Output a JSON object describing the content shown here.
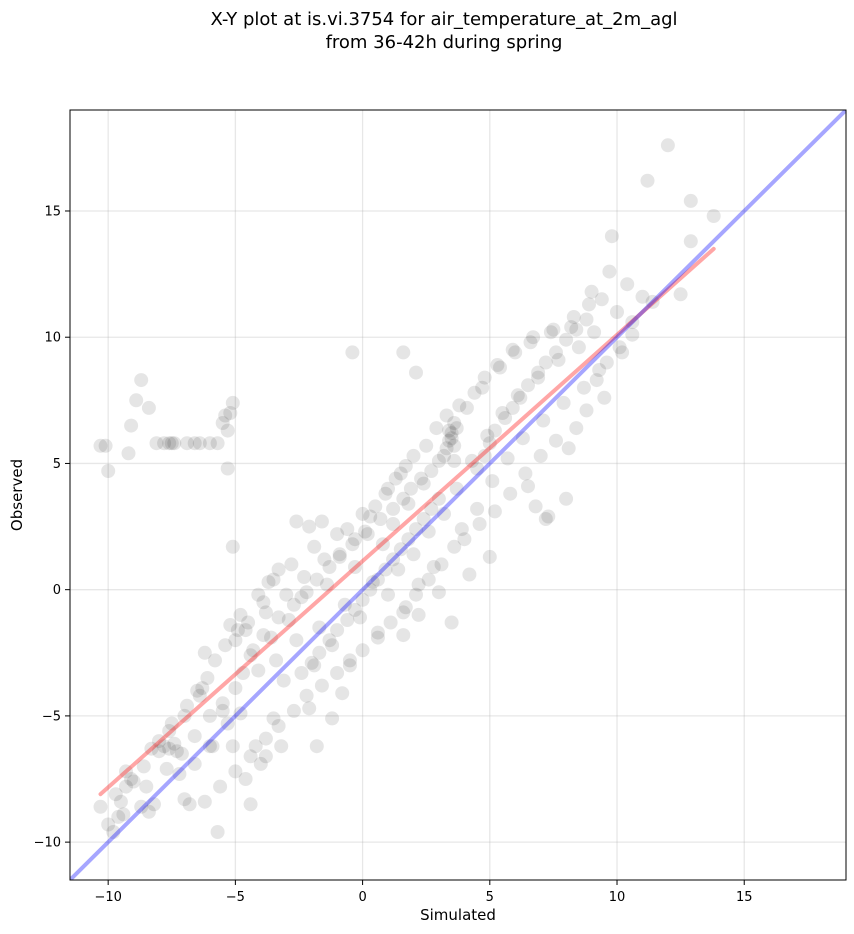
{
  "chart_data": {
    "type": "scatter",
    "title": [
      "X-Y plot at is.vi.3754 for air_temperature_at_2m_agl",
      "from 36-42h during spring"
    ],
    "xlabel": "Simulated",
    "ylabel": "Observed",
    "xlim": [
      -11.5,
      19
    ],
    "ylim": [
      -11.5,
      19
    ],
    "xticks": [
      -10,
      -5,
      0,
      5,
      10,
      15
    ],
    "yticks": [
      -10,
      -5,
      0,
      5,
      10,
      15
    ],
    "xtick_labels": [
      "−10",
      "−5",
      "0",
      "5",
      "10",
      "15"
    ],
    "ytick_labels": [
      "−10",
      "−5",
      "0",
      "5",
      "10",
      "15"
    ],
    "grid": true,
    "series": [
      {
        "kind": "scatter",
        "color": "#000000",
        "alpha": 0.1,
        "points": [
          [
            -10.3,
            5.7
          ],
          [
            -10.1,
            5.7
          ],
          [
            -10.0,
            4.7
          ],
          [
            -9.2,
            5.4
          ],
          [
            -9.1,
            6.5
          ],
          [
            -8.9,
            7.5
          ],
          [
            -8.7,
            8.3
          ],
          [
            -8.4,
            7.2
          ],
          [
            -8.1,
            5.8
          ],
          [
            -7.8,
            5.8
          ],
          [
            -7.6,
            5.8
          ],
          [
            -7.5,
            5.8
          ],
          [
            -7.4,
            5.8
          ],
          [
            -6.9,
            5.8
          ],
          [
            -6.6,
            5.8
          ],
          [
            -6.4,
            5.8
          ],
          [
            -6.0,
            5.8
          ],
          [
            -5.7,
            5.8
          ],
          [
            -5.5,
            6.6
          ],
          [
            -5.4,
            6.9
          ],
          [
            -5.3,
            6.3
          ],
          [
            -5.2,
            7.0
          ],
          [
            -5.1,
            7.4
          ],
          [
            -5.3,
            4.8
          ],
          [
            -5.1,
            1.7
          ],
          [
            -3.5,
            0.4
          ],
          [
            -3.3,
            0.8
          ],
          [
            -2.6,
            2.7
          ],
          [
            -2.1,
            2.5
          ],
          [
            -1.6,
            2.7
          ],
          [
            -0.4,
            9.4
          ],
          [
            1.6,
            9.4
          ],
          [
            2.1,
            8.6
          ],
          [
            -10.3,
            -8.6
          ],
          [
            -10.0,
            -9.3
          ],
          [
            -9.8,
            -9.6
          ],
          [
            -9.6,
            -9.0
          ],
          [
            -9.5,
            -8.4
          ],
          [
            -9.3,
            -7.8
          ],
          [
            -9.1,
            -7.5
          ],
          [
            -8.7,
            -8.6
          ],
          [
            -8.4,
            -8.8
          ],
          [
            -8.2,
            -8.5
          ],
          [
            -8.0,
            -6.0
          ],
          [
            -7.8,
            -6.2
          ],
          [
            -7.6,
            -6.3
          ],
          [
            -7.4,
            -6.1
          ],
          [
            -7.3,
            -6.4
          ],
          [
            -7.2,
            -7.3
          ],
          [
            -7.0,
            -8.3
          ],
          [
            -6.8,
            -8.5
          ],
          [
            -6.6,
            -6.9
          ],
          [
            -6.4,
            -4.2
          ],
          [
            -6.2,
            -2.5
          ],
          [
            -6.0,
            -6.2
          ],
          [
            -5.9,
            -6.2
          ],
          [
            -5.7,
            -9.6
          ],
          [
            -5.5,
            -4.8
          ],
          [
            -5.3,
            -5.3
          ],
          [
            -5.1,
            -6.2
          ],
          [
            -4.8,
            -4.9
          ],
          [
            -4.6,
            -7.5
          ],
          [
            -4.4,
            -8.5
          ],
          [
            -4.2,
            -6.2
          ],
          [
            -4.0,
            -6.9
          ],
          [
            -3.8,
            -6.6
          ],
          [
            -3.5,
            -5.1
          ],
          [
            -3.2,
            -6.2
          ],
          [
            -1.8,
            -6.2
          ],
          [
            -1.2,
            -5.1
          ],
          [
            -0.8,
            -4.1
          ],
          [
            1.6,
            -1.8
          ],
          [
            3.5,
            -1.3
          ],
          [
            -5.2,
            -1.4
          ],
          [
            -5.0,
            -2.0
          ],
          [
            -4.8,
            -1.0
          ],
          [
            -4.6,
            -1.6
          ],
          [
            -4.3,
            -2.4
          ],
          [
            -4.1,
            -3.2
          ],
          [
            -3.9,
            -0.5
          ],
          [
            -3.6,
            -1.9
          ],
          [
            -3.4,
            -2.8
          ],
          [
            -3.1,
            -3.6
          ],
          [
            -2.9,
            -1.2
          ],
          [
            -2.6,
            -2.0
          ],
          [
            -2.4,
            -0.3
          ],
          [
            -2.1,
            -4.7
          ],
          [
            -1.9,
            -3.0
          ],
          [
            -1.7,
            -1.5
          ],
          [
            -1.4,
            0.2
          ],
          [
            -1.2,
            -2.2
          ],
          [
            -0.9,
            1.4
          ],
          [
            -0.7,
            -0.6
          ],
          [
            -0.5,
            -2.8
          ],
          [
            -0.3,
            0.9
          ],
          [
            -0.1,
            -1.1
          ],
          [
            0.2,
            2.2
          ],
          [
            0.4,
            0.3
          ],
          [
            0.6,
            -1.7
          ],
          [
            0.8,
            1.8
          ],
          [
            1.0,
            -0.2
          ],
          [
            1.2,
            2.6
          ],
          [
            1.4,
            0.8
          ],
          [
            1.6,
            -0.9
          ],
          [
            1.8,
            3.4
          ],
          [
            2.0,
            1.4
          ],
          [
            2.2,
            0.2
          ],
          [
            2.4,
            4.2
          ],
          [
            2.6,
            2.3
          ],
          [
            2.8,
            0.9
          ],
          [
            3.0,
            5.1
          ],
          [
            3.2,
            3.0
          ],
          [
            3.4,
            6.3
          ],
          [
            3.5,
            6.0
          ],
          [
            3.6,
            5.7
          ],
          [
            3.7,
            4.0
          ],
          [
            3.9,
            2.4
          ],
          [
            4.1,
            7.2
          ],
          [
            4.3,
            5.1
          ],
          [
            4.5,
            3.2
          ],
          [
            4.7,
            8.0
          ],
          [
            4.9,
            6.1
          ],
          [
            5.1,
            4.3
          ],
          [
            5.3,
            8.9
          ],
          [
            5.5,
            7.0
          ],
          [
            5.7,
            5.2
          ],
          [
            5.9,
            9.5
          ],
          [
            6.1,
            7.7
          ],
          [
            6.3,
            6.0
          ],
          [
            6.5,
            4.1
          ],
          [
            6.7,
            10.0
          ],
          [
            6.9,
            8.4
          ],
          [
            7.1,
            6.7
          ],
          [
            7.3,
            2.9
          ],
          [
            7.5,
            10.3
          ],
          [
            7.7,
            9.1
          ],
          [
            7.9,
            7.4
          ],
          [
            8.1,
            5.6
          ],
          [
            8.3,
            10.8
          ],
          [
            8.5,
            9.6
          ],
          [
            8.7,
            8.0
          ],
          [
            8.9,
            11.3
          ],
          [
            9.1,
            10.2
          ],
          [
            9.3,
            8.7
          ],
          [
            9.5,
            7.6
          ],
          [
            9.7,
            12.6
          ],
          [
            9.8,
            14.0
          ],
          [
            10.0,
            11.0
          ],
          [
            10.2,
            9.4
          ],
          [
            10.4,
            12.1
          ],
          [
            10.6,
            10.6
          ],
          [
            11.0,
            11.6
          ],
          [
            11.2,
            16.2
          ],
          [
            11.4,
            11.4
          ],
          [
            12.0,
            17.6
          ],
          [
            12.5,
            11.7
          ],
          [
            12.9,
            15.4
          ],
          [
            12.9,
            13.8
          ],
          [
            13.8,
            14.8
          ],
          [
            8.0,
            3.6
          ],
          [
            7.2,
            2.8
          ],
          [
            6.8,
            3.3
          ],
          [
            5.0,
            1.3
          ],
          [
            4.2,
            0.6
          ],
          [
            3.0,
            -0.1
          ],
          [
            2.2,
            -1.0
          ],
          [
            1.5,
            4.6
          ],
          [
            1.0,
            4.0
          ],
          [
            0.5,
            3.3
          ],
          [
            0.0,
            3.0
          ],
          [
            -0.6,
            2.4
          ],
          [
            -1.0,
            2.2
          ],
          [
            -1.9,
            1.7
          ],
          [
            -2.8,
            1.0
          ],
          [
            -3.7,
            0.3
          ],
          [
            -4.1,
            -0.2
          ],
          [
            -4.9,
            -1.6
          ],
          [
            -6.1,
            -3.5
          ],
          [
            -6.5,
            -4.0
          ],
          [
            -7.0,
            -5.0
          ],
          [
            -7.6,
            -5.6
          ],
          [
            -8.0,
            -6.4
          ],
          [
            -8.6,
            -7.0
          ],
          [
            -9.0,
            -7.6
          ],
          [
            2.5,
            5.7
          ],
          [
            2.9,
            6.4
          ],
          [
            3.3,
            6.9
          ],
          [
            3.8,
            7.3
          ],
          [
            4.4,
            7.8
          ],
          [
            4.8,
            8.4
          ],
          [
            5.4,
            8.8
          ],
          [
            6.0,
            9.4
          ],
          [
            6.6,
            9.8
          ],
          [
            7.4,
            10.2
          ],
          [
            8.2,
            10.4
          ],
          [
            9.0,
            11.8
          ],
          [
            9.4,
            11.5
          ],
          [
            2.0,
            5.3
          ],
          [
            1.7,
            4.9
          ],
          [
            1.3,
            4.4
          ],
          [
            0.9,
            3.8
          ],
          [
            0.3,
            2.9
          ],
          [
            -0.3,
            2.0
          ],
          [
            -1.5,
            1.2
          ],
          [
            -2.3,
            0.5
          ],
          [
            -3.0,
            -0.2
          ],
          [
            -3.8,
            -0.9
          ],
          [
            -4.5,
            -1.3
          ],
          [
            -5.4,
            -2.2
          ],
          [
            -5.8,
            -2.8
          ],
          [
            -6.3,
            -3.9
          ],
          [
            -6.9,
            -4.6
          ],
          [
            -7.5,
            -5.3
          ],
          [
            -8.3,
            -6.3
          ],
          [
            -9.3,
            -7.2
          ],
          [
            -9.7,
            -8.1
          ],
          [
            3.6,
            6.6
          ],
          [
            3.4,
            5.9
          ],
          [
            3.5,
            6.2
          ],
          [
            3.7,
            6.4
          ],
          [
            3.3,
            5.6
          ],
          [
            3.2,
            5.3
          ],
          [
            3.6,
            5.1
          ],
          [
            2.7,
            4.7
          ],
          [
            2.3,
            4.4
          ],
          [
            1.9,
            4.0
          ],
          [
            1.6,
            3.6
          ],
          [
            1.2,
            3.2
          ],
          [
            0.7,
            2.8
          ],
          [
            0.1,
            2.3
          ],
          [
            -0.4,
            1.8
          ],
          [
            -0.9,
            1.3
          ],
          [
            -1.3,
            0.9
          ],
          [
            -1.8,
            0.4
          ],
          [
            -2.2,
            -0.1
          ],
          [
            -2.7,
            -0.6
          ],
          [
            -3.3,
            -1.1
          ],
          [
            -3.9,
            -1.8
          ],
          [
            -4.4,
            -2.6
          ],
          [
            -4.7,
            -3.3
          ],
          [
            -5.0,
            -3.9
          ],
          [
            -5.5,
            -4.5
          ],
          [
            -6.0,
            -5.0
          ],
          [
            -6.6,
            -5.8
          ],
          [
            -7.1,
            -6.5
          ],
          [
            -7.7,
            -7.1
          ],
          [
            -8.5,
            -7.8
          ],
          [
            -9.4,
            -8.9
          ],
          [
            4.0,
            2.0
          ],
          [
            4.6,
            2.6
          ],
          [
            5.2,
            3.1
          ],
          [
            5.8,
            3.8
          ],
          [
            6.4,
            4.6
          ],
          [
            7.0,
            5.3
          ],
          [
            7.6,
            5.9
          ],
          [
            8.4,
            6.4
          ],
          [
            8.8,
            7.1
          ],
          [
            9.2,
            8.3
          ],
          [
            9.6,
            9.0
          ],
          [
            10.1,
            9.6
          ],
          [
            10.6,
            10.1
          ],
          [
            3.6,
            1.7
          ],
          [
            3.1,
            1.0
          ],
          [
            2.6,
            0.4
          ],
          [
            2.1,
            -0.2
          ],
          [
            1.7,
            -0.7
          ],
          [
            1.1,
            -1.3
          ],
          [
            0.6,
            -1.9
          ],
          [
            0.0,
            -2.4
          ],
          [
            -0.5,
            -3.0
          ],
          [
            -1.0,
            -3.3
          ],
          [
            -1.6,
            -3.8
          ],
          [
            -2.2,
            -4.2
          ],
          [
            -2.7,
            -4.8
          ],
          [
            -3.3,
            -5.4
          ],
          [
            -3.8,
            -5.9
          ],
          [
            -4.4,
            -6.6
          ],
          [
            -5.0,
            -7.2
          ],
          [
            -5.6,
            -7.8
          ],
          [
            -6.2,
            -8.4
          ],
          [
            4.5,
            4.8
          ],
          [
            4.8,
            5.3
          ],
          [
            5.0,
            5.8
          ],
          [
            5.2,
            6.3
          ],
          [
            5.6,
            6.8
          ],
          [
            5.9,
            7.2
          ],
          [
            6.2,
            7.6
          ],
          [
            6.5,
            8.1
          ],
          [
            6.9,
            8.6
          ],
          [
            7.2,
            9.0
          ],
          [
            7.6,
            9.4
          ],
          [
            8.0,
            9.9
          ],
          [
            8.4,
            10.3
          ],
          [
            8.8,
            10.7
          ],
          [
            3.0,
            3.6
          ],
          [
            2.7,
            3.2
          ],
          [
            2.4,
            2.8
          ],
          [
            2.1,
            2.4
          ],
          [
            1.8,
            2.0
          ],
          [
            1.5,
            1.6
          ],
          [
            1.2,
            1.2
          ],
          [
            0.9,
            0.8
          ],
          [
            0.6,
            0.4
          ],
          [
            0.3,
            0.0
          ],
          [
            0.0,
            -0.4
          ],
          [
            -0.3,
            -0.8
          ],
          [
            -0.6,
            -1.2
          ],
          [
            -1.0,
            -1.6
          ],
          [
            -1.3,
            -2.0
          ],
          [
            -1.7,
            -2.5
          ],
          [
            -2.0,
            -2.9
          ],
          [
            -2.4,
            -3.3
          ]
        ]
      },
      {
        "kind": "line",
        "color": "#ff0000",
        "alpha": 0.35,
        "points": [
          [
            -10.3,
            -8.1
          ],
          [
            13.8,
            13.5
          ]
        ]
      },
      {
        "kind": "line",
        "color": "#0000ff",
        "alpha": 0.35,
        "points": [
          [
            -11.5,
            -11.5
          ],
          [
            19,
            19
          ]
        ]
      }
    ]
  }
}
